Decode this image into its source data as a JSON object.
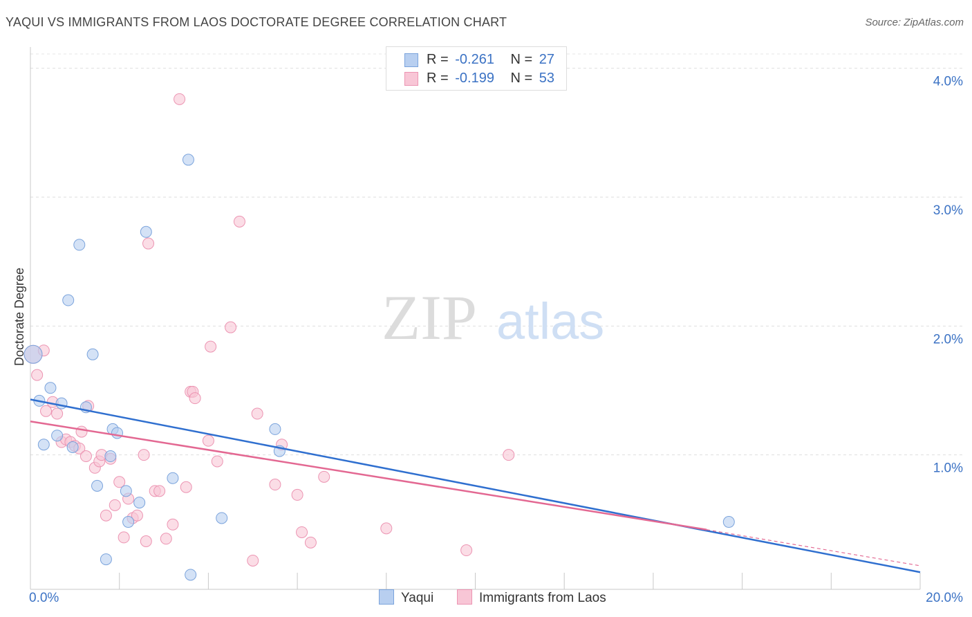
{
  "header": {
    "title": "YAQUI VS IMMIGRANTS FROM LAOS DOCTORATE DEGREE CORRELATION CHART",
    "source": "Source: ZipAtlas.com"
  },
  "legend": {
    "r_label": "R =",
    "n_label": "N =",
    "series": [
      {
        "name": "Yaqui",
        "r": "-0.261",
        "n": "27"
      },
      {
        "name": "Immigrants from Laos",
        "r": "-0.199",
        "n": "53"
      }
    ]
  },
  "watermark": {
    "part1": "ZIP",
    "part2": "atlas"
  },
  "colors": {
    "blue_fill": "#b8cff0",
    "blue_stroke": "#7aa3dc",
    "blue_line": "#2f6fcf",
    "pink_fill": "#f8c6d6",
    "pink_stroke": "#ec94b2",
    "pink_line": "#e36892",
    "tick_text": "#3b72c4"
  },
  "chart_data": {
    "type": "scatter",
    "title": "YAQUI VS IMMIGRANTS FROM LAOS DOCTORATE DEGREE CORRELATION CHART",
    "xlabel": "",
    "ylabel": "Doctorate Degree",
    "xlim": [
      0,
      20
    ],
    "ylim": [
      0,
      4.1
    ],
    "x_tick_labels": [
      "0.0%",
      "20.0%"
    ],
    "y_ticks": [
      1,
      2,
      3,
      4
    ],
    "y_tick_labels": [
      "1.0%",
      "2.0%",
      "3.0%",
      "4.0%"
    ],
    "grid": true,
    "series": [
      {
        "name": "Yaqui",
        "r": -0.261,
        "n": 27,
        "trend": {
          "x": [
            0,
            20
          ],
          "y": [
            1.43,
            0.09
          ],
          "dashed_beyond": null
        },
        "points": [
          [
            0.0,
            1.78
          ],
          [
            0.2,
            1.42
          ],
          [
            0.3,
            1.08
          ],
          [
            0.45,
            1.52
          ],
          [
            0.6,
            1.15
          ],
          [
            0.7,
            1.4
          ],
          [
            0.85,
            2.2
          ],
          [
            0.95,
            1.06
          ],
          [
            1.1,
            2.63
          ],
          [
            1.25,
            1.37
          ],
          [
            1.4,
            1.78
          ],
          [
            1.5,
            0.76
          ],
          [
            1.7,
            0.19
          ],
          [
            1.8,
            0.99
          ],
          [
            1.85,
            1.2
          ],
          [
            1.95,
            1.17
          ],
          [
            2.15,
            0.72
          ],
          [
            2.2,
            0.48
          ],
          [
            2.45,
            0.63
          ],
          [
            2.6,
            2.73
          ],
          [
            3.2,
            0.82
          ],
          [
            3.55,
            3.29
          ],
          [
            3.6,
            0.07
          ],
          [
            4.3,
            0.51
          ],
          [
            5.5,
            1.2
          ],
          [
            5.6,
            1.03
          ],
          [
            15.7,
            0.48
          ]
        ]
      },
      {
        "name": "Immigrants from Laos",
        "r": -0.199,
        "n": 53,
        "trend": {
          "x": [
            0,
            15.2
          ],
          "y": [
            1.26,
            0.42
          ],
          "dashed_x": [
            15.2,
            20
          ],
          "dashed_y": [
            0.42,
            0.14
          ]
        },
        "points": [
          [
            0.0,
            1.78
          ],
          [
            0.15,
            1.62
          ],
          [
            0.3,
            1.81
          ],
          [
            0.35,
            1.34
          ],
          [
            0.5,
            1.41
          ],
          [
            0.6,
            1.32
          ],
          [
            0.7,
            1.1
          ],
          [
            0.8,
            1.12
          ],
          [
            0.9,
            1.1
          ],
          [
            1.0,
            1.07
          ],
          [
            1.1,
            1.05
          ],
          [
            1.15,
            1.18
          ],
          [
            1.25,
            0.99
          ],
          [
            1.3,
            1.38
          ],
          [
            1.45,
            0.9
          ],
          [
            1.55,
            0.95
          ],
          [
            1.6,
            1.0
          ],
          [
            1.7,
            0.53
          ],
          [
            1.8,
            0.97
          ],
          [
            1.9,
            0.61
          ],
          [
            2.0,
            0.79
          ],
          [
            2.1,
            0.36
          ],
          [
            2.2,
            0.66
          ],
          [
            2.3,
            0.51
          ],
          [
            2.4,
            0.53
          ],
          [
            2.55,
            1.0
          ],
          [
            2.6,
            0.33
          ],
          [
            2.65,
            2.64
          ],
          [
            2.8,
            0.72
          ],
          [
            2.9,
            0.72
          ],
          [
            3.05,
            0.35
          ],
          [
            3.2,
            0.46
          ],
          [
            3.35,
            3.76
          ],
          [
            3.5,
            0.75
          ],
          [
            3.6,
            1.49
          ],
          [
            3.65,
            1.49
          ],
          [
            3.7,
            1.44
          ],
          [
            4.0,
            1.11
          ],
          [
            4.05,
            1.84
          ],
          [
            4.2,
            0.95
          ],
          [
            4.5,
            1.99
          ],
          [
            4.7,
            2.81
          ],
          [
            5.0,
            0.18
          ],
          [
            5.1,
            1.32
          ],
          [
            5.5,
            0.77
          ],
          [
            5.65,
            1.08
          ],
          [
            6.0,
            0.69
          ],
          [
            6.1,
            0.4
          ],
          [
            6.3,
            0.32
          ],
          [
            6.6,
            0.83
          ],
          [
            8.0,
            0.43
          ],
          [
            9.8,
            0.26
          ],
          [
            10.75,
            1.0
          ]
        ]
      }
    ]
  }
}
